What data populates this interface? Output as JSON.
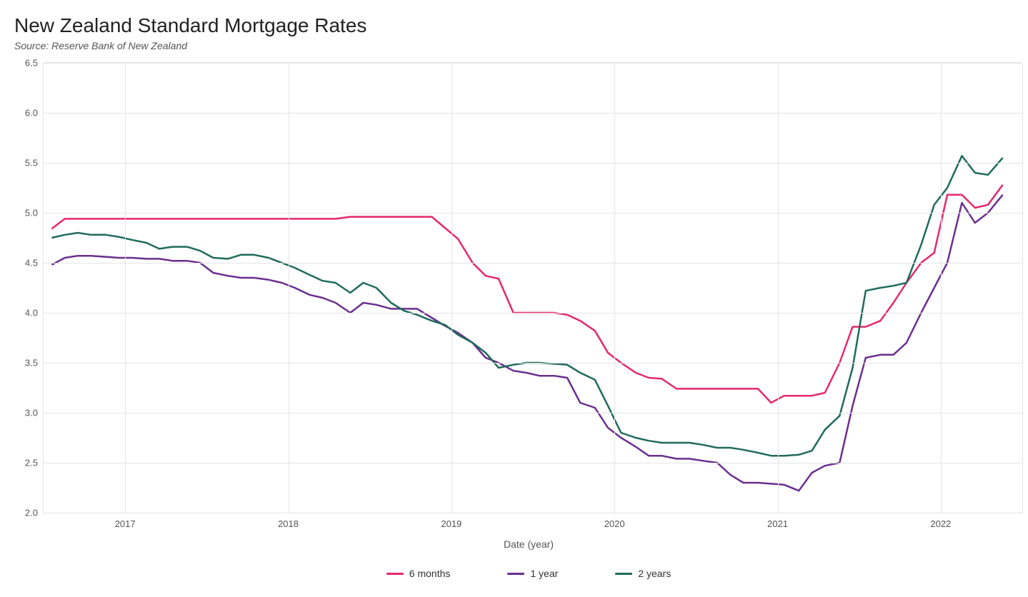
{
  "title": "New Zealand Standard Mortgage Rates",
  "subtitle": "Source: Reserve Bank of New Zealand",
  "x_axis_title": "Date (year)",
  "chart": {
    "type": "line",
    "background_color": "#ffffff",
    "grid_color": "#e5e5e5",
    "line_width": 2.5,
    "ylim": [
      2.0,
      6.5
    ],
    "ytick_step": 0.5,
    "yticks": [
      2.0,
      2.5,
      3.0,
      3.5,
      4.0,
      4.5,
      5.0,
      5.5,
      6.0,
      6.5
    ],
    "xlim": [
      2016.5,
      2022.5
    ],
    "xticks": [
      2017,
      2018,
      2019,
      2020,
      2021,
      2022
    ],
    "axis_fontsize": 13,
    "axis_font_color": "#555555",
    "title_fontsize": 28,
    "title_color": "#222222",
    "subtitle_fontsize": 14,
    "subtitle_color": "#555555",
    "legend_position": "bottom-center",
    "series": [
      {
        "name": "6 months",
        "color": "#e6286e",
        "x": [
          2016.55,
          2016.63,
          2016.71,
          2016.79,
          2016.88,
          2016.96,
          2017.04,
          2017.13,
          2017.21,
          2017.29,
          2017.38,
          2017.46,
          2017.54,
          2017.63,
          2017.71,
          2017.79,
          2017.88,
          2017.96,
          2018.04,
          2018.13,
          2018.21,
          2018.29,
          2018.38,
          2018.46,
          2018.54,
          2018.63,
          2018.71,
          2018.79,
          2018.88,
          2018.96,
          2019.04,
          2019.13,
          2019.21,
          2019.29,
          2019.38,
          2019.46,
          2019.54,
          2019.63,
          2019.71,
          2019.79,
          2019.88,
          2019.96,
          2020.04,
          2020.13,
          2020.21,
          2020.29,
          2020.38,
          2020.46,
          2020.54,
          2020.63,
          2020.71,
          2020.79,
          2020.88,
          2020.96,
          2021.04,
          2021.13,
          2021.21,
          2021.29,
          2021.38,
          2021.46,
          2021.54,
          2021.63,
          2021.71,
          2021.79,
          2021.88,
          2021.96,
          2022.04,
          2022.13,
          2022.21,
          2022.29,
          2022.38
        ],
        "y": [
          4.84,
          4.94,
          4.94,
          4.94,
          4.94,
          4.94,
          4.94,
          4.94,
          4.94,
          4.94,
          4.94,
          4.94,
          4.94,
          4.94,
          4.94,
          4.94,
          4.94,
          4.94,
          4.94,
          4.94,
          4.94,
          4.94,
          4.96,
          4.96,
          4.96,
          4.96,
          4.96,
          4.96,
          4.96,
          4.85,
          4.74,
          4.5,
          4.37,
          4.34,
          4.0,
          4.0,
          4.0,
          4.0,
          3.98,
          3.92,
          3.82,
          3.6,
          3.5,
          3.4,
          3.35,
          3.34,
          3.24,
          3.24,
          3.24,
          3.24,
          3.24,
          3.24,
          3.24,
          3.1,
          3.17,
          3.17,
          3.17,
          3.2,
          3.5,
          3.86,
          3.86,
          3.92,
          4.1,
          4.3,
          4.5,
          4.6,
          5.18,
          5.18,
          5.05,
          5.08,
          5.28
        ]
      },
      {
        "name": "1 year",
        "color": "#6b2e8f",
        "x": [
          2016.55,
          2016.63,
          2016.71,
          2016.79,
          2016.88,
          2016.96,
          2017.04,
          2017.13,
          2017.21,
          2017.29,
          2017.38,
          2017.46,
          2017.54,
          2017.63,
          2017.71,
          2017.79,
          2017.88,
          2017.96,
          2018.04,
          2018.13,
          2018.21,
          2018.29,
          2018.38,
          2018.46,
          2018.54,
          2018.63,
          2018.71,
          2018.79,
          2018.88,
          2018.96,
          2019.04,
          2019.13,
          2019.21,
          2019.29,
          2019.38,
          2019.46,
          2019.54,
          2019.63,
          2019.71,
          2019.79,
          2019.88,
          2019.96,
          2020.04,
          2020.13,
          2020.21,
          2020.29,
          2020.38,
          2020.46,
          2020.54,
          2020.63,
          2020.71,
          2020.79,
          2020.88,
          2020.96,
          2021.04,
          2021.13,
          2021.21,
          2021.29,
          2021.38,
          2021.46,
          2021.54,
          2021.63,
          2021.71,
          2021.79,
          2021.88,
          2021.96,
          2022.04,
          2022.13,
          2022.21,
          2022.29,
          2022.38
        ],
        "y": [
          4.48,
          4.55,
          4.57,
          4.57,
          4.56,
          4.55,
          4.55,
          4.54,
          4.54,
          4.52,
          4.52,
          4.5,
          4.4,
          4.37,
          4.35,
          4.35,
          4.33,
          4.3,
          4.25,
          4.18,
          4.15,
          4.1,
          4.0,
          4.1,
          4.08,
          4.04,
          4.04,
          4.04,
          3.95,
          3.87,
          3.8,
          3.7,
          3.55,
          3.5,
          3.42,
          3.4,
          3.37,
          3.37,
          3.35,
          3.1,
          3.05,
          2.85,
          2.75,
          2.66,
          2.57,
          2.57,
          2.54,
          2.54,
          2.52,
          2.5,
          2.38,
          2.3,
          2.3,
          2.29,
          2.28,
          2.22,
          2.4,
          2.47,
          2.5,
          3.07,
          3.55,
          3.58,
          3.58,
          3.7,
          4.0,
          4.25,
          4.5,
          5.1,
          4.9,
          5.0,
          5.18
        ]
      },
      {
        "name": "2 years",
        "color": "#1f6b5c",
        "x": [
          2016.55,
          2016.63,
          2016.71,
          2016.79,
          2016.88,
          2016.96,
          2017.04,
          2017.13,
          2017.21,
          2017.29,
          2017.38,
          2017.46,
          2017.54,
          2017.63,
          2017.71,
          2017.79,
          2017.88,
          2017.96,
          2018.04,
          2018.13,
          2018.21,
          2018.29,
          2018.38,
          2018.46,
          2018.54,
          2018.63,
          2018.71,
          2018.79,
          2018.88,
          2018.96,
          2019.04,
          2019.13,
          2019.21,
          2019.29,
          2019.38,
          2019.46,
          2019.54,
          2019.63,
          2019.71,
          2019.79,
          2019.88,
          2019.96,
          2020.04,
          2020.13,
          2020.21,
          2020.29,
          2020.38,
          2020.46,
          2020.54,
          2020.63,
          2020.71,
          2020.79,
          2020.88,
          2020.96,
          2021.04,
          2021.13,
          2021.21,
          2021.29,
          2021.38,
          2021.46,
          2021.54,
          2021.63,
          2021.71,
          2021.79,
          2021.88,
          2021.96,
          2022.04,
          2022.13,
          2022.21,
          2022.29,
          2022.38
        ],
        "y": [
          4.75,
          4.78,
          4.8,
          4.78,
          4.78,
          4.76,
          4.73,
          4.7,
          4.64,
          4.66,
          4.66,
          4.62,
          4.55,
          4.54,
          4.58,
          4.58,
          4.55,
          4.5,
          4.45,
          4.38,
          4.32,
          4.3,
          4.2,
          4.3,
          4.25,
          4.1,
          4.02,
          3.98,
          3.92,
          3.88,
          3.78,
          3.7,
          3.6,
          3.45,
          3.48,
          3.5,
          3.5,
          3.49,
          3.48,
          3.4,
          3.33,
          3.07,
          2.8,
          2.75,
          2.72,
          2.7,
          2.7,
          2.7,
          2.68,
          2.65,
          2.65,
          2.63,
          2.6,
          2.57,
          2.57,
          2.58,
          2.62,
          2.83,
          2.97,
          3.45,
          4.22,
          4.25,
          4.27,
          4.3,
          4.68,
          5.08,
          5.25,
          5.57,
          5.4,
          5.38,
          5.55
        ]
      }
    ]
  },
  "legend": [
    {
      "label": "6 months",
      "color": "#e6286e"
    },
    {
      "label": "1 year",
      "color": "#6b2e8f"
    },
    {
      "label": "2 years",
      "color": "#1f6b5c"
    }
  ]
}
